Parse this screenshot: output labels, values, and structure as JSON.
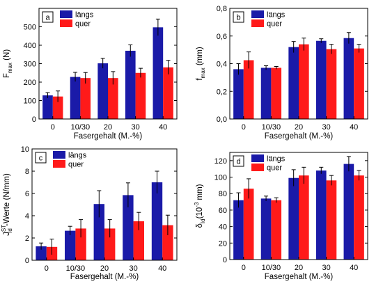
{
  "colors": {
    "laengs": "#1a1aa8",
    "quer": "#ff1a1a"
  },
  "chart_data": [
    {
      "type": "bar",
      "panel_label": "a",
      "categories": [
        "0",
        "10/30",
        "20",
        "30",
        "40"
      ],
      "series": [
        {
          "name": "längs",
          "values": [
            128,
            228,
            302,
            370,
            497
          ],
          "errors": [
            15,
            25,
            27,
            32,
            45
          ]
        },
        {
          "name": "quer",
          "values": [
            122,
            222,
            222,
            250,
            280
          ],
          "errors": [
            30,
            30,
            35,
            25,
            38
          ]
        }
      ],
      "xlabel": "Fasergehalt (M.-%)",
      "ylabel": "F_max (N)",
      "ylabel_main": "F",
      "ylabel_sub": "max",
      "ylabel_unit": " (N)",
      "ylim": [
        0,
        600
      ],
      "yticks": [
        "0",
        "100",
        "200",
        "300",
        "400",
        "500"
      ],
      "legend": true
    },
    {
      "type": "bar",
      "panel_label": "b",
      "categories": [
        "0",
        "10/30",
        "20",
        "30",
        "40"
      ],
      "series": [
        {
          "name": "längs",
          "values": [
            0.36,
            0.37,
            0.52,
            0.565,
            0.585
          ],
          "errors": [
            0.04,
            0.015,
            0.04,
            0.015,
            0.04
          ]
        },
        {
          "name": "quer",
          "values": [
            0.425,
            0.37,
            0.54,
            0.505,
            0.51
          ],
          "errors": [
            0.06,
            0.01,
            0.045,
            0.035,
            0.03
          ]
        }
      ],
      "xlabel": "Fasergehalt (M.-%)",
      "ylabel": "f_max (mm)",
      "ylabel_main": "f",
      "ylabel_sub": "max",
      "ylabel_unit": " (mm)",
      "ylim": [
        0,
        0.8
      ],
      "yticks": [
        "0,0",
        "0,2",
        "0,4",
        "0,6",
        "0,8"
      ],
      "legend": true
    },
    {
      "type": "bar",
      "panel_label": "c",
      "categories": [
        "0",
        "10/30",
        "20",
        "30",
        "40"
      ],
      "series": [
        {
          "name": "längs",
          "values": [
            1.25,
            2.65,
            5.05,
            5.85,
            7.0
          ],
          "errors": [
            0.3,
            0.4,
            1.2,
            1.1,
            1.0
          ]
        },
        {
          "name": "quer",
          "values": [
            1.2,
            2.85,
            2.85,
            3.5,
            3.15
          ],
          "errors": [
            0.7,
            0.8,
            0.8,
            0.8,
            0.9
          ]
        }
      ],
      "xlabel": "Fasergehalt (M.-%)",
      "ylabel": "J_Id^ST -Werte (N/mm)",
      "ylabel_main": "J",
      "ylabel_sub": "Id",
      "ylabel_sup": "ST",
      "ylabel_unit": " -Werte (N/mm)",
      "ylim": [
        0,
        10
      ],
      "yticks": [
        "0",
        "2",
        "4",
        "6",
        "8",
        "10"
      ],
      "legend": true
    },
    {
      "type": "bar",
      "panel_label": "d",
      "categories": [
        "0",
        "10/30",
        "20",
        "30",
        "40"
      ],
      "series": [
        {
          "name": "längs",
          "values": [
            72,
            74,
            99,
            108,
            116
          ],
          "errors": [
            9,
            3,
            10,
            4,
            9
          ]
        },
        {
          "name": "quer",
          "values": [
            86,
            72,
            102,
            96,
            102
          ],
          "errors": [
            12,
            3,
            10,
            6,
            6
          ]
        }
      ],
      "xlabel": "Fasergehalt (M.-%)",
      "ylabel": "δ_Id (10^-3 mm)",
      "ylabel_main": "δ",
      "ylabel_sub": "Id",
      "ylabel_unit": "(10",
      "ylabel_unit_sup": "-3",
      "ylabel_unit_tail": " mm)",
      "ylim": [
        0,
        130
      ],
      "yticks": [
        "0",
        "20",
        "40",
        "60",
        "80",
        "100",
        "120"
      ],
      "legend": true
    }
  ]
}
